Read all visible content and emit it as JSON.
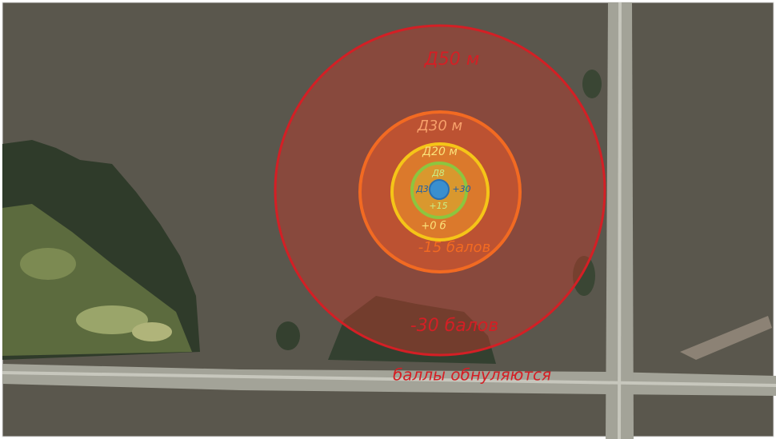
{
  "zones": [
    {
      "diameter": "Д50 м",
      "score": "-30 балов"
    },
    {
      "diameter": "Д30 м",
      "score": "-15 балов"
    },
    {
      "diameter": "Д20 м",
      "score": "+0 б"
    },
    {
      "diameter": "Д8",
      "score": "+15"
    },
    {
      "diameter": "Д3",
      "score": "+30"
    }
  ],
  "outside_note": "баллы обнуляются"
}
